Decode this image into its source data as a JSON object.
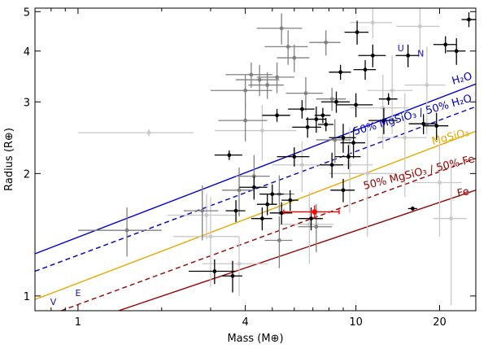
{
  "chart_data": {
    "type": "scatter",
    "xlabel": "Mass (M⊕)",
    "ylabel": "Radius (R⊕)",
    "x_scale": "log",
    "y_scale": "log",
    "xlim": [
      0.7,
      27
    ],
    "ylim": [
      0.92,
      5.1
    ],
    "x_ticks": [
      1,
      4,
      10,
      20
    ],
    "x_tick_labels": [
      "1",
      "4",
      "10",
      "20"
    ],
    "y_ticks": [
      1,
      2,
      3,
      4,
      5
    ],
    "y_tick_labels": [
      "1",
      "2",
      "3",
      "4",
      "5"
    ],
    "grid": false,
    "composition_curves": [
      {
        "label": "H₂O",
        "color": "#0000cc",
        "style": "solid",
        "x": [
          0.7,
          27
        ],
        "y": [
          1.27,
          3.32
        ]
      },
      {
        "label": "50% MgSiO₃ / 50% H₂O",
        "color": "#0000cc",
        "style": "dashed",
        "x": [
          0.7,
          27
        ],
        "y": [
          1.15,
          2.92
        ]
      },
      {
        "label": "MgSiO₃",
        "color": "#e8a800",
        "style": "solid",
        "x": [
          0.7,
          27
        ],
        "y": [
          0.98,
          2.54
        ]
      },
      {
        "label": "50% MgSiO₃ / 50% Fe",
        "color": "#990000",
        "style": "dashed",
        "x": [
          0.87,
          27
        ],
        "y": [
          0.92,
          2.18
        ]
      },
      {
        "label": "Fe",
        "color": "#990000",
        "style": "solid",
        "x": [
          1.4,
          27
        ],
        "y": [
          0.92,
          1.82
        ]
      }
    ],
    "solar_system": [
      {
        "label": "V",
        "x": 0.815,
        "y": 0.95
      },
      {
        "label": "E",
        "x": 1.0,
        "y": 1.0
      },
      {
        "label": "U",
        "x": 14.5,
        "y": 4.0
      },
      {
        "label": "N",
        "x": 17.1,
        "y": 3.88
      }
    ],
    "highlight": {
      "x": 7.1,
      "y": 1.61,
      "xerr": 1.6,
      "yerr": 0.06,
      "color": "#ff0000"
    },
    "series": [
      {
        "color": "#000000",
        "points": [
          {
            "x": 3.1,
            "y": 1.15,
            "xerr": 0.6,
            "yerr": 0.08
          },
          {
            "x": 3.6,
            "y": 1.12,
            "xerr": 0.3,
            "yerr": 0.1
          },
          {
            "x": 3.5,
            "y": 2.22,
            "xerr": 0.4,
            "yerr": 0.06
          },
          {
            "x": 3.7,
            "y": 1.62,
            "xerr": 0.3,
            "yerr": 0.1
          },
          {
            "x": 4.3,
            "y": 1.85,
            "xerr": 0.5,
            "yerr": 0.12
          },
          {
            "x": 4.6,
            "y": 1.55,
            "xerr": 0.4,
            "yerr": 0.1
          },
          {
            "x": 4.8,
            "y": 1.68,
            "xerr": 0.4,
            "yerr": 0.1
          },
          {
            "x": 5.0,
            "y": 1.78,
            "xerr": 0.5,
            "yerr": 0.1
          },
          {
            "x": 5.2,
            "y": 2.78,
            "xerr": 0.6,
            "yerr": 0.1
          },
          {
            "x": 5.4,
            "y": 1.6,
            "xerr": 0.5,
            "yerr": 0.1
          },
          {
            "x": 5.8,
            "y": 1.72,
            "xerr": 0.4,
            "yerr": 0.1
          },
          {
            "x": 6.0,
            "y": 2.2,
            "xerr": 0.8,
            "yerr": 0.12
          },
          {
            "x": 6.4,
            "y": 2.88,
            "xerr": 0.7,
            "yerr": 0.15
          },
          {
            "x": 6.7,
            "y": 2.6,
            "xerr": 0.8,
            "yerr": 0.15
          },
          {
            "x": 6.9,
            "y": 1.55,
            "xerr": 0.7,
            "yerr": 0.1
          },
          {
            "x": 7.2,
            "y": 2.72,
            "xerr": 0.6,
            "yerr": 0.2
          },
          {
            "x": 7.6,
            "y": 2.78,
            "xerr": 0.5,
            "yerr": 0.12
          },
          {
            "x": 7.8,
            "y": 2.64,
            "xerr": 0.5,
            "yerr": 0.1
          },
          {
            "x": 8.2,
            "y": 2.1,
            "xerr": 0.8,
            "yerr": 0.15
          },
          {
            "x": 8.5,
            "y": 3.0,
            "xerr": 1.0,
            "yerr": 0.18
          },
          {
            "x": 8.8,
            "y": 3.55,
            "xerr": 0.8,
            "yerr": 0.15
          },
          {
            "x": 9.0,
            "y": 1.82,
            "xerr": 0.9,
            "yerr": 0.12
          },
          {
            "x": 9.0,
            "y": 2.45,
            "xerr": 1.0,
            "yerr": 0.2
          },
          {
            "x": 9.4,
            "y": 2.2,
            "xerr": 1.0,
            "yerr": 0.15
          },
          {
            "x": 9.8,
            "y": 2.38,
            "xerr": 1.0,
            "yerr": 0.2
          },
          {
            "x": 10.0,
            "y": 2.95,
            "xerr": 1.5,
            "yerr": 0.2
          },
          {
            "x": 10.1,
            "y": 4.45,
            "xerr": 1.0,
            "yerr": 0.3
          },
          {
            "x": 10.8,
            "y": 3.6,
            "xerr": 1.0,
            "yerr": 0.2
          },
          {
            "x": 11.5,
            "y": 3.9,
            "xerr": 1.3,
            "yerr": 0.25
          },
          {
            "x": 12.6,
            "y": 2.7,
            "xerr": 1.5,
            "yerr": 0.2
          },
          {
            "x": 13.1,
            "y": 3.05,
            "xerr": 1.0,
            "yerr": 0.1
          },
          {
            "x": 16.0,
            "y": 1.64,
            "xerr": 0.6,
            "yerr": 0.02
          },
          {
            "x": 15.4,
            "y": 3.9,
            "xerr": 1.5,
            "yerr": 0.25
          },
          {
            "x": 19.5,
            "y": 2.62,
            "xerr": 2.0,
            "yerr": 0.2
          },
          {
            "x": 21.0,
            "y": 4.15,
            "xerr": 2.0,
            "yerr": 0.2
          },
          {
            "x": 23.0,
            "y": 4.0,
            "xerr": 1.8,
            "yerr": 0.3
          },
          {
            "x": 25.5,
            "y": 4.78,
            "xerr": 1.5,
            "yerr": 0.2
          },
          {
            "x": 17.5,
            "y": 2.65,
            "xerr": 2.0,
            "yerr": 0.15
          }
        ]
      },
      {
        "color": "#808080",
        "points": [
          {
            "x": 1.5,
            "y": 1.45,
            "xerr": 0.5,
            "yerr": 0.2
          },
          {
            "x": 2.8,
            "y": 1.62,
            "xerr": 0.4,
            "yerr": 0.25
          },
          {
            "x": 3.8,
            "y": 1.82,
            "xerr": 0.5,
            "yerr": 0.25
          },
          {
            "x": 4.0,
            "y": 2.7,
            "xerr": 0.8,
            "yerr": 0.3
          },
          {
            "x": 4.0,
            "y": 3.2,
            "xerr": 1.0,
            "yerr": 0.3
          },
          {
            "x": 4.2,
            "y": 3.5,
            "xerr": 0.8,
            "yerr": 0.25
          },
          {
            "x": 4.5,
            "y": 3.4,
            "xerr": 0.8,
            "yerr": 0.3
          },
          {
            "x": 4.3,
            "y": 1.97,
            "xerr": 0.6,
            "yerr": 0.25
          },
          {
            "x": 4.8,
            "y": 3.3,
            "xerr": 0.7,
            "yerr": 0.25
          },
          {
            "x": 5.2,
            "y": 3.45,
            "xerr": 0.8,
            "yerr": 0.3
          },
          {
            "x": 5.3,
            "y": 1.78,
            "xerr": 0.7,
            "yerr": 0.2
          },
          {
            "x": 5.4,
            "y": 4.55,
            "xerr": 1.0,
            "yerr": 0.4
          },
          {
            "x": 5.3,
            "y": 1.37,
            "xerr": 0.6,
            "yerr": 0.2
          },
          {
            "x": 5.7,
            "y": 4.1,
            "xerr": 1.0,
            "yerr": 0.4
          },
          {
            "x": 6.0,
            "y": 3.85,
            "xerr": 0.8,
            "yerr": 0.3
          },
          {
            "x": 6.6,
            "y": 3.15,
            "xerr": 1.0,
            "yerr": 0.3
          },
          {
            "x": 7.2,
            "y": 1.48,
            "xerr": 1.0,
            "yerr": 0.2
          },
          {
            "x": 7.8,
            "y": 4.2,
            "xerr": 1.0,
            "yerr": 0.3
          },
          {
            "x": 8.4,
            "y": 2.42,
            "xerr": 1.2,
            "yerr": 0.3
          },
          {
            "x": 8.2,
            "y": 3.05,
            "xerr": 1.0,
            "yerr": 0.2
          }
        ]
      },
      {
        "color": "#c8c8c8",
        "points": [
          {
            "x": 1.8,
            "y": 2.52,
            "xerr": 0.8,
            "yerr": 0.05
          },
          {
            "x": 2.9,
            "y": 1.58,
            "xerr": 0.8,
            "yerr": 0.2
          },
          {
            "x": 3.0,
            "y": 1.4,
            "xerr": 0.8,
            "yerr": 0.35
          },
          {
            "x": 3.8,
            "y": 1.2,
            "xerr": 1.0,
            "yerr": 0.2
          },
          {
            "x": 4.6,
            "y": 2.55,
            "xerr": 1.5,
            "yerr": 0.4
          },
          {
            "x": 6.4,
            "y": 2.1,
            "xerr": 1.4,
            "yerr": 0.3
          },
          {
            "x": 6.8,
            "y": 1.5,
            "xerr": 1.5,
            "yerr": 0.3
          },
          {
            "x": 9.5,
            "y": 2.1,
            "xerr": 2.0,
            "yerr": 0.5
          },
          {
            "x": 11.0,
            "y": 2.0,
            "xerr": 3.0,
            "yerr": 0.6
          },
          {
            "x": 12.5,
            "y": 2.9,
            "xerr": 3.0,
            "yerr": 0.6
          },
          {
            "x": 13.5,
            "y": 3.2,
            "xerr": 2.5,
            "yerr": 0.7
          },
          {
            "x": 15.0,
            "y": 2.45,
            "xerr": 3.0,
            "yerr": 0.7
          },
          {
            "x": 18.0,
            "y": 3.3,
            "xerr": 3.0,
            "yerr": 0.8
          },
          {
            "x": 20.0,
            "y": 1.9,
            "xerr": 4.0,
            "yerr": 0.5
          },
          {
            "x": 22.0,
            "y": 1.55,
            "xerr": 3.0,
            "yerr": 0.6
          },
          {
            "x": 17.0,
            "y": 4.6,
            "xerr": 3.0,
            "yerr": 0.6
          },
          {
            "x": 11.5,
            "y": 4.7,
            "xerr": 2.0,
            "yerr": 0.4
          }
        ]
      }
    ]
  }
}
